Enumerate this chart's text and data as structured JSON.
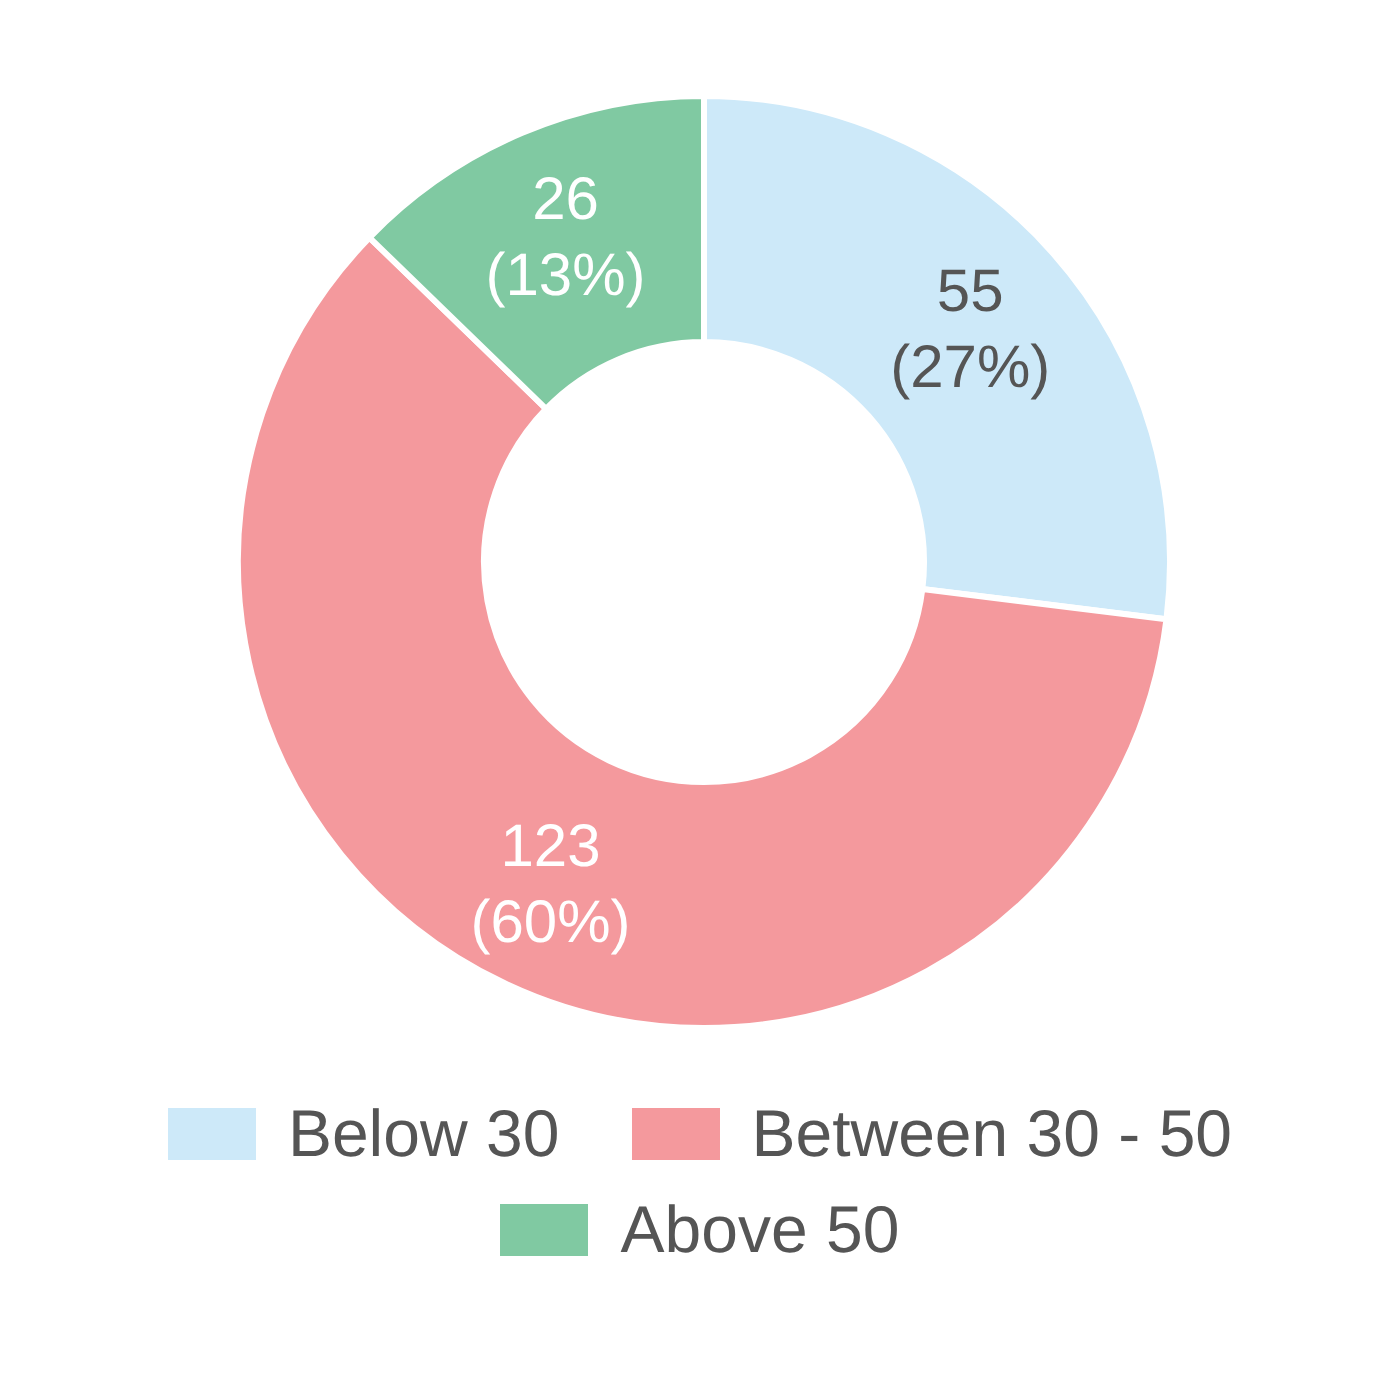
{
  "chart_data": {
    "type": "donut",
    "categories": [
      "Below 30",
      "Between 30 - 50",
      "Above 50"
    ],
    "values": [
      55,
      123,
      26
    ],
    "colors": [
      "#cde9f9",
      "#f4999d",
      "#80c9a2"
    ],
    "value_labels": [
      "55 (27%)",
      "123 (60%)",
      "26 (13%)"
    ],
    "legend": "bottom"
  }
}
